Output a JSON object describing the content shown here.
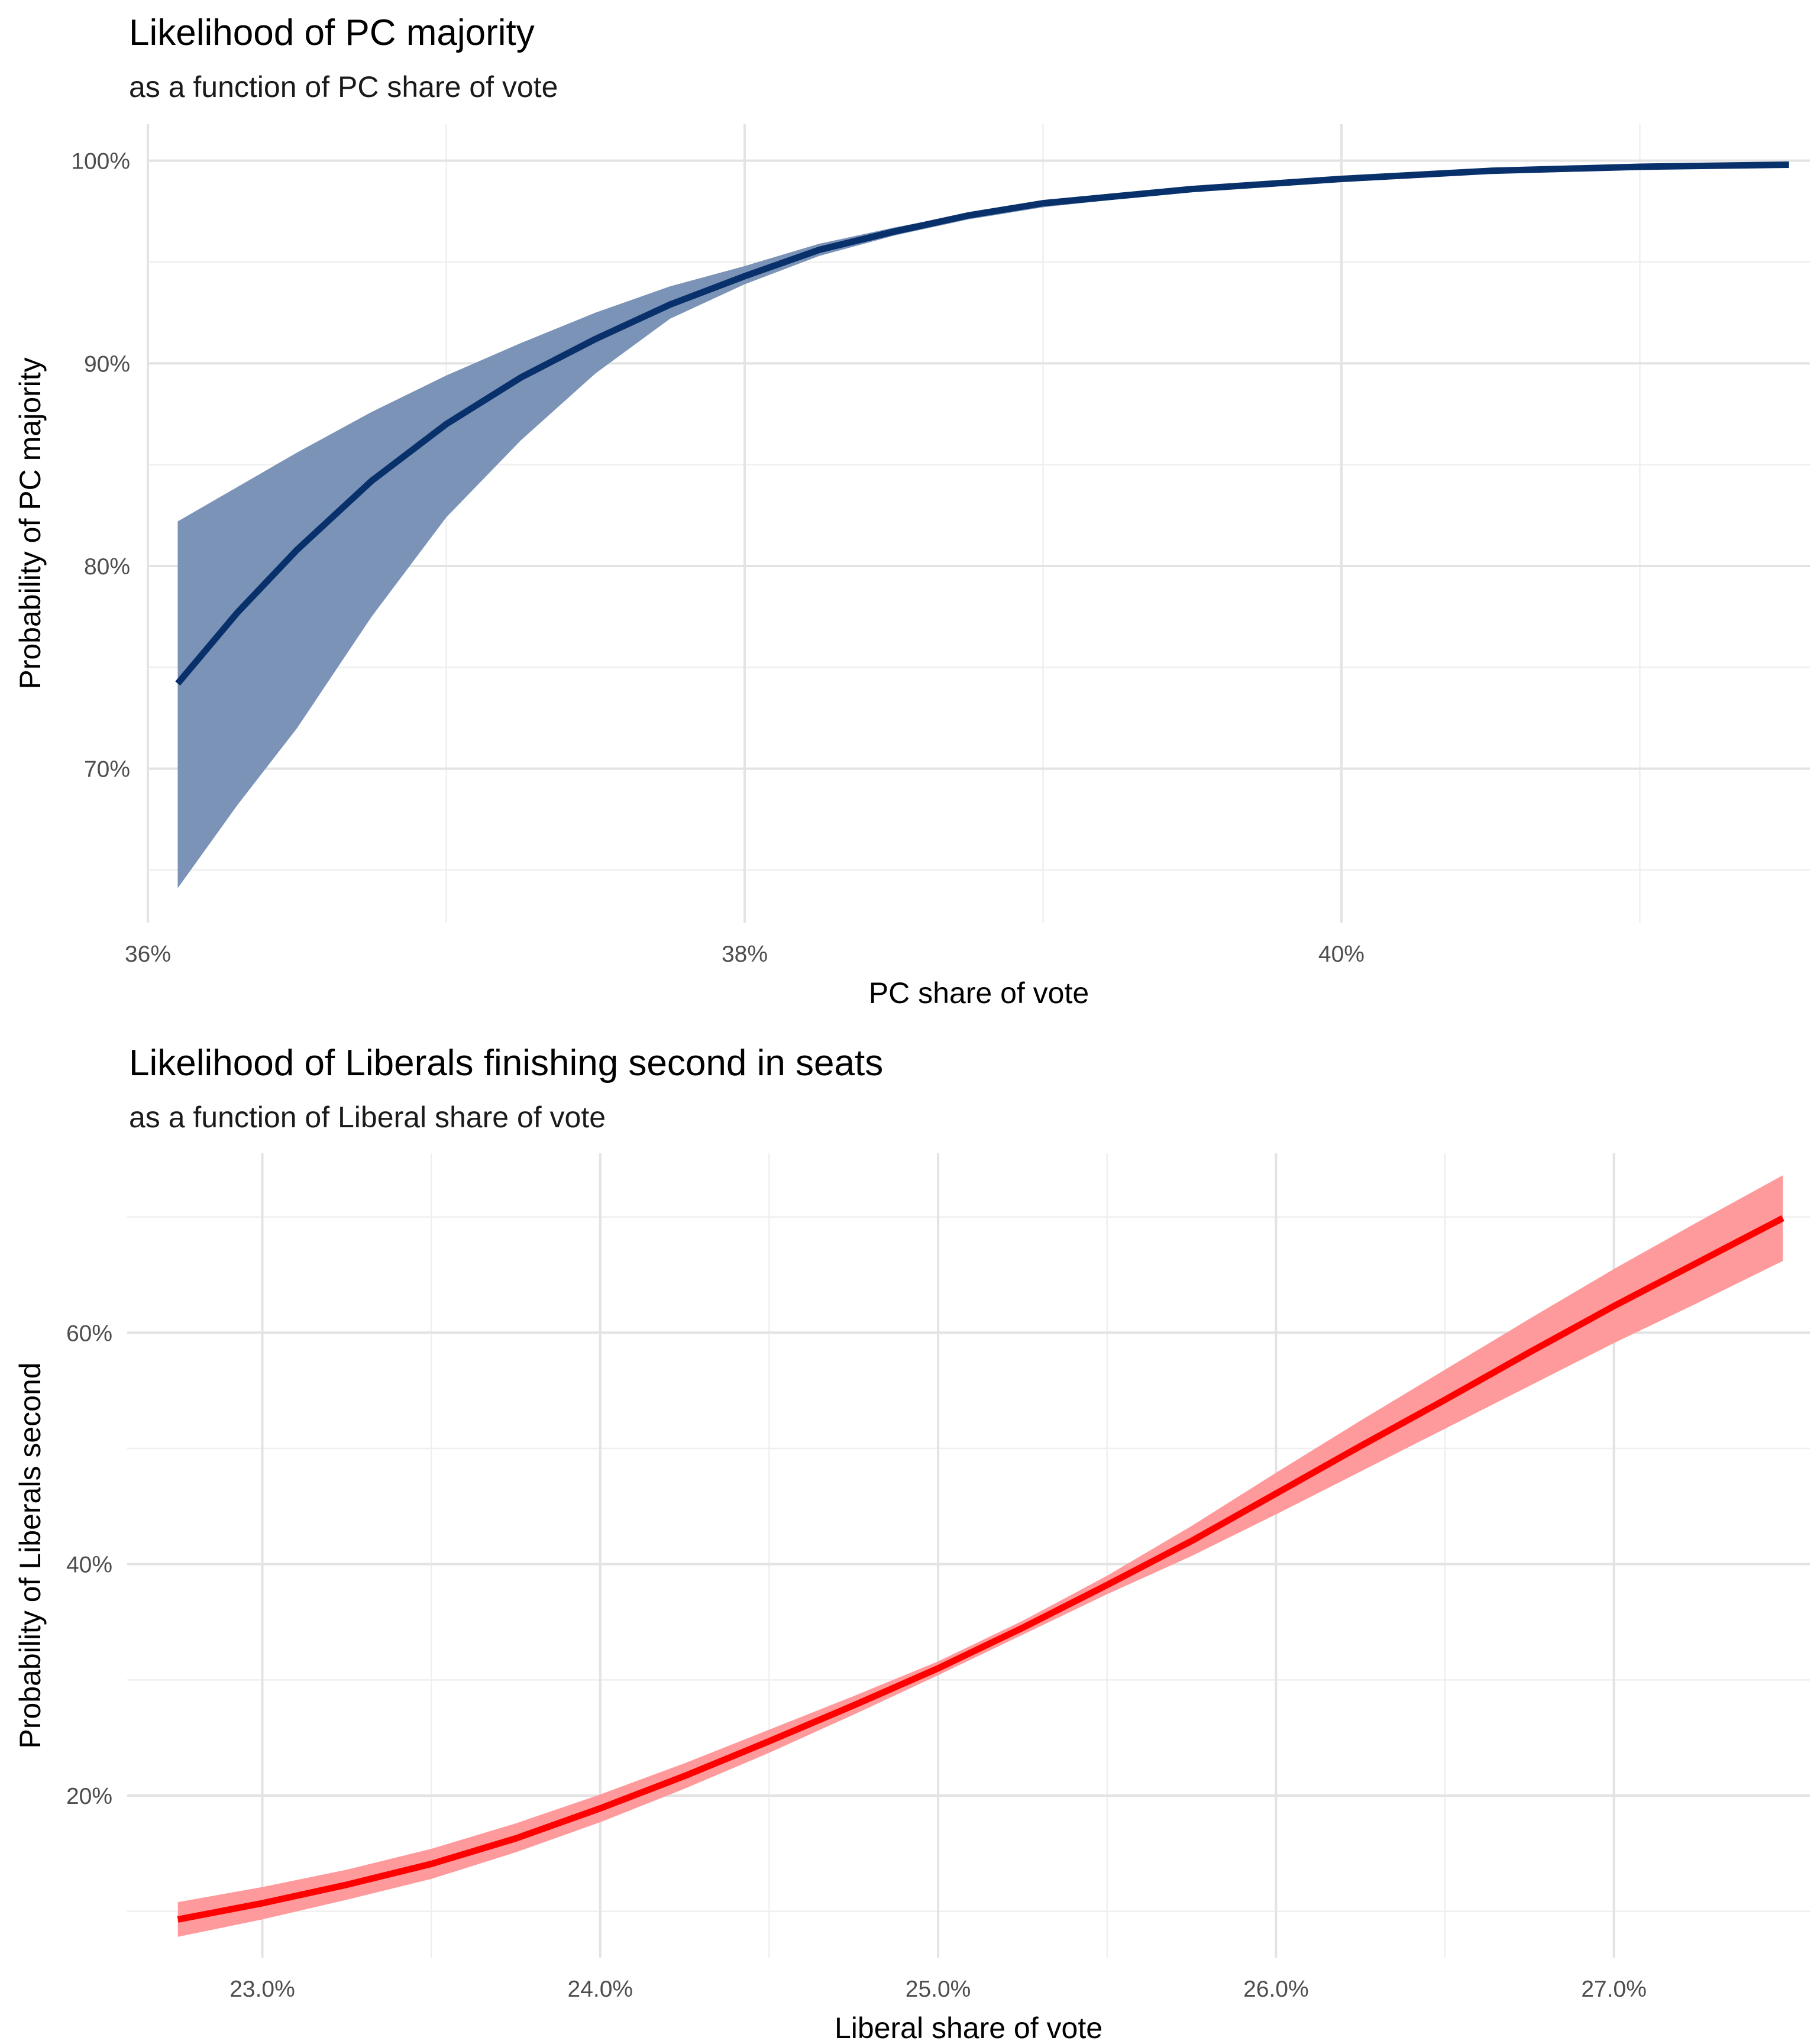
{
  "chart_data": [
    {
      "type": "line",
      "title": "Likelihood of PC majority",
      "subtitle": "as a function of PC share of vote",
      "xlabel": "PC share of vote",
      "ylabel": "Probability of PC majority",
      "xlim": [
        36.0,
        41.57
      ],
      "ylim": [
        62.4,
        101.8
      ],
      "x_ticks": [
        36,
        38,
        40
      ],
      "x_tick_labels": [
        "36%",
        "38%",
        "40%"
      ],
      "x_minor_ticks": [
        37,
        39,
        41
      ],
      "y_ticks": [
        70,
        80,
        90,
        100
      ],
      "y_tick_labels": [
        "70%",
        "80%",
        "90%",
        "100%"
      ],
      "y_minor_ticks": [
        65,
        75,
        85,
        95
      ],
      "grid": true,
      "series": [
        {
          "line_color": "#08306b",
          "ribbon_color": "#7b93b7",
          "x": [
            36.1,
            36.3,
            36.5,
            36.75,
            37.0,
            37.25,
            37.5,
            37.75,
            38.0,
            38.25,
            38.5,
            38.75,
            39.0,
            39.5,
            40.0,
            40.5,
            41.0,
            41.5
          ],
          "y": [
            74.2,
            77.7,
            80.8,
            84.2,
            87.0,
            89.3,
            91.2,
            92.9,
            94.3,
            95.6,
            96.5,
            97.3,
            97.9,
            98.6,
            99.1,
            99.5,
            99.7,
            99.8
          ],
          "lower": [
            64.1,
            68.2,
            72.0,
            77.5,
            82.4,
            86.2,
            89.5,
            92.2,
            93.9,
            95.3,
            96.3,
            97.1,
            97.7,
            98.5,
            99.1,
            99.4,
            99.6,
            99.8
          ],
          "upper": [
            82.2,
            83.9,
            85.6,
            87.6,
            89.4,
            91.0,
            92.5,
            93.8,
            94.8,
            95.9,
            96.7,
            97.4,
            98.0,
            98.7,
            99.2,
            99.5,
            99.7,
            99.9
          ]
        }
      ]
    },
    {
      "type": "line",
      "title": "Likelihood of Liberals finishing second in seats",
      "subtitle": "as a function of Liberal share of vote",
      "xlabel": "Liberal share of vote",
      "ylabel": "Probability of Liberals second",
      "xlim": [
        22.6,
        27.58
      ],
      "ylim": [
        6.0,
        75.5
      ],
      "x_ticks": [
        23,
        24,
        25,
        26,
        27
      ],
      "x_tick_labels": [
        "23.0%",
        "24.0%",
        "25.0%",
        "26.0%",
        "27.0%"
      ],
      "x_minor_ticks": [
        23.5,
        24.5,
        25.5,
        26.5
      ],
      "y_ticks": [
        20,
        40,
        60
      ],
      "y_tick_labels": [
        "20%",
        "40%",
        "60%"
      ],
      "y_minor_ticks": [
        10,
        30,
        50,
        70
      ],
      "grid": true,
      "series": [
        {
          "line_color": "#ff0000",
          "ribbon_color": "#ff9a9c",
          "x": [
            22.75,
            23.0,
            23.25,
            23.5,
            23.75,
            24.0,
            24.25,
            24.5,
            24.75,
            25.0,
            25.25,
            25.5,
            25.75,
            26.0,
            26.25,
            26.5,
            26.75,
            27.0,
            27.25,
            27.5
          ],
          "y": [
            9.3,
            10.7,
            12.3,
            14.1,
            16.3,
            18.9,
            21.7,
            24.7,
            27.8,
            31.0,
            34.5,
            38.2,
            42.0,
            46.1,
            50.2,
            54.2,
            58.3,
            62.3,
            66.1,
            69.9
          ],
          "lower": [
            7.8,
            9.3,
            11.0,
            12.8,
            15.1,
            17.7,
            20.6,
            23.7,
            27.0,
            30.4,
            33.9,
            37.4,
            40.7,
            44.3,
            48.0,
            51.7,
            55.4,
            59.1,
            62.6,
            66.2
          ],
          "upper": [
            10.8,
            12.1,
            13.6,
            15.4,
            17.6,
            20.1,
            22.8,
            25.7,
            28.6,
            31.6,
            35.1,
            39.0,
            43.3,
            47.9,
            52.4,
            56.8,
            61.2,
            65.5,
            69.6,
            73.6
          ]
        }
      ]
    }
  ]
}
